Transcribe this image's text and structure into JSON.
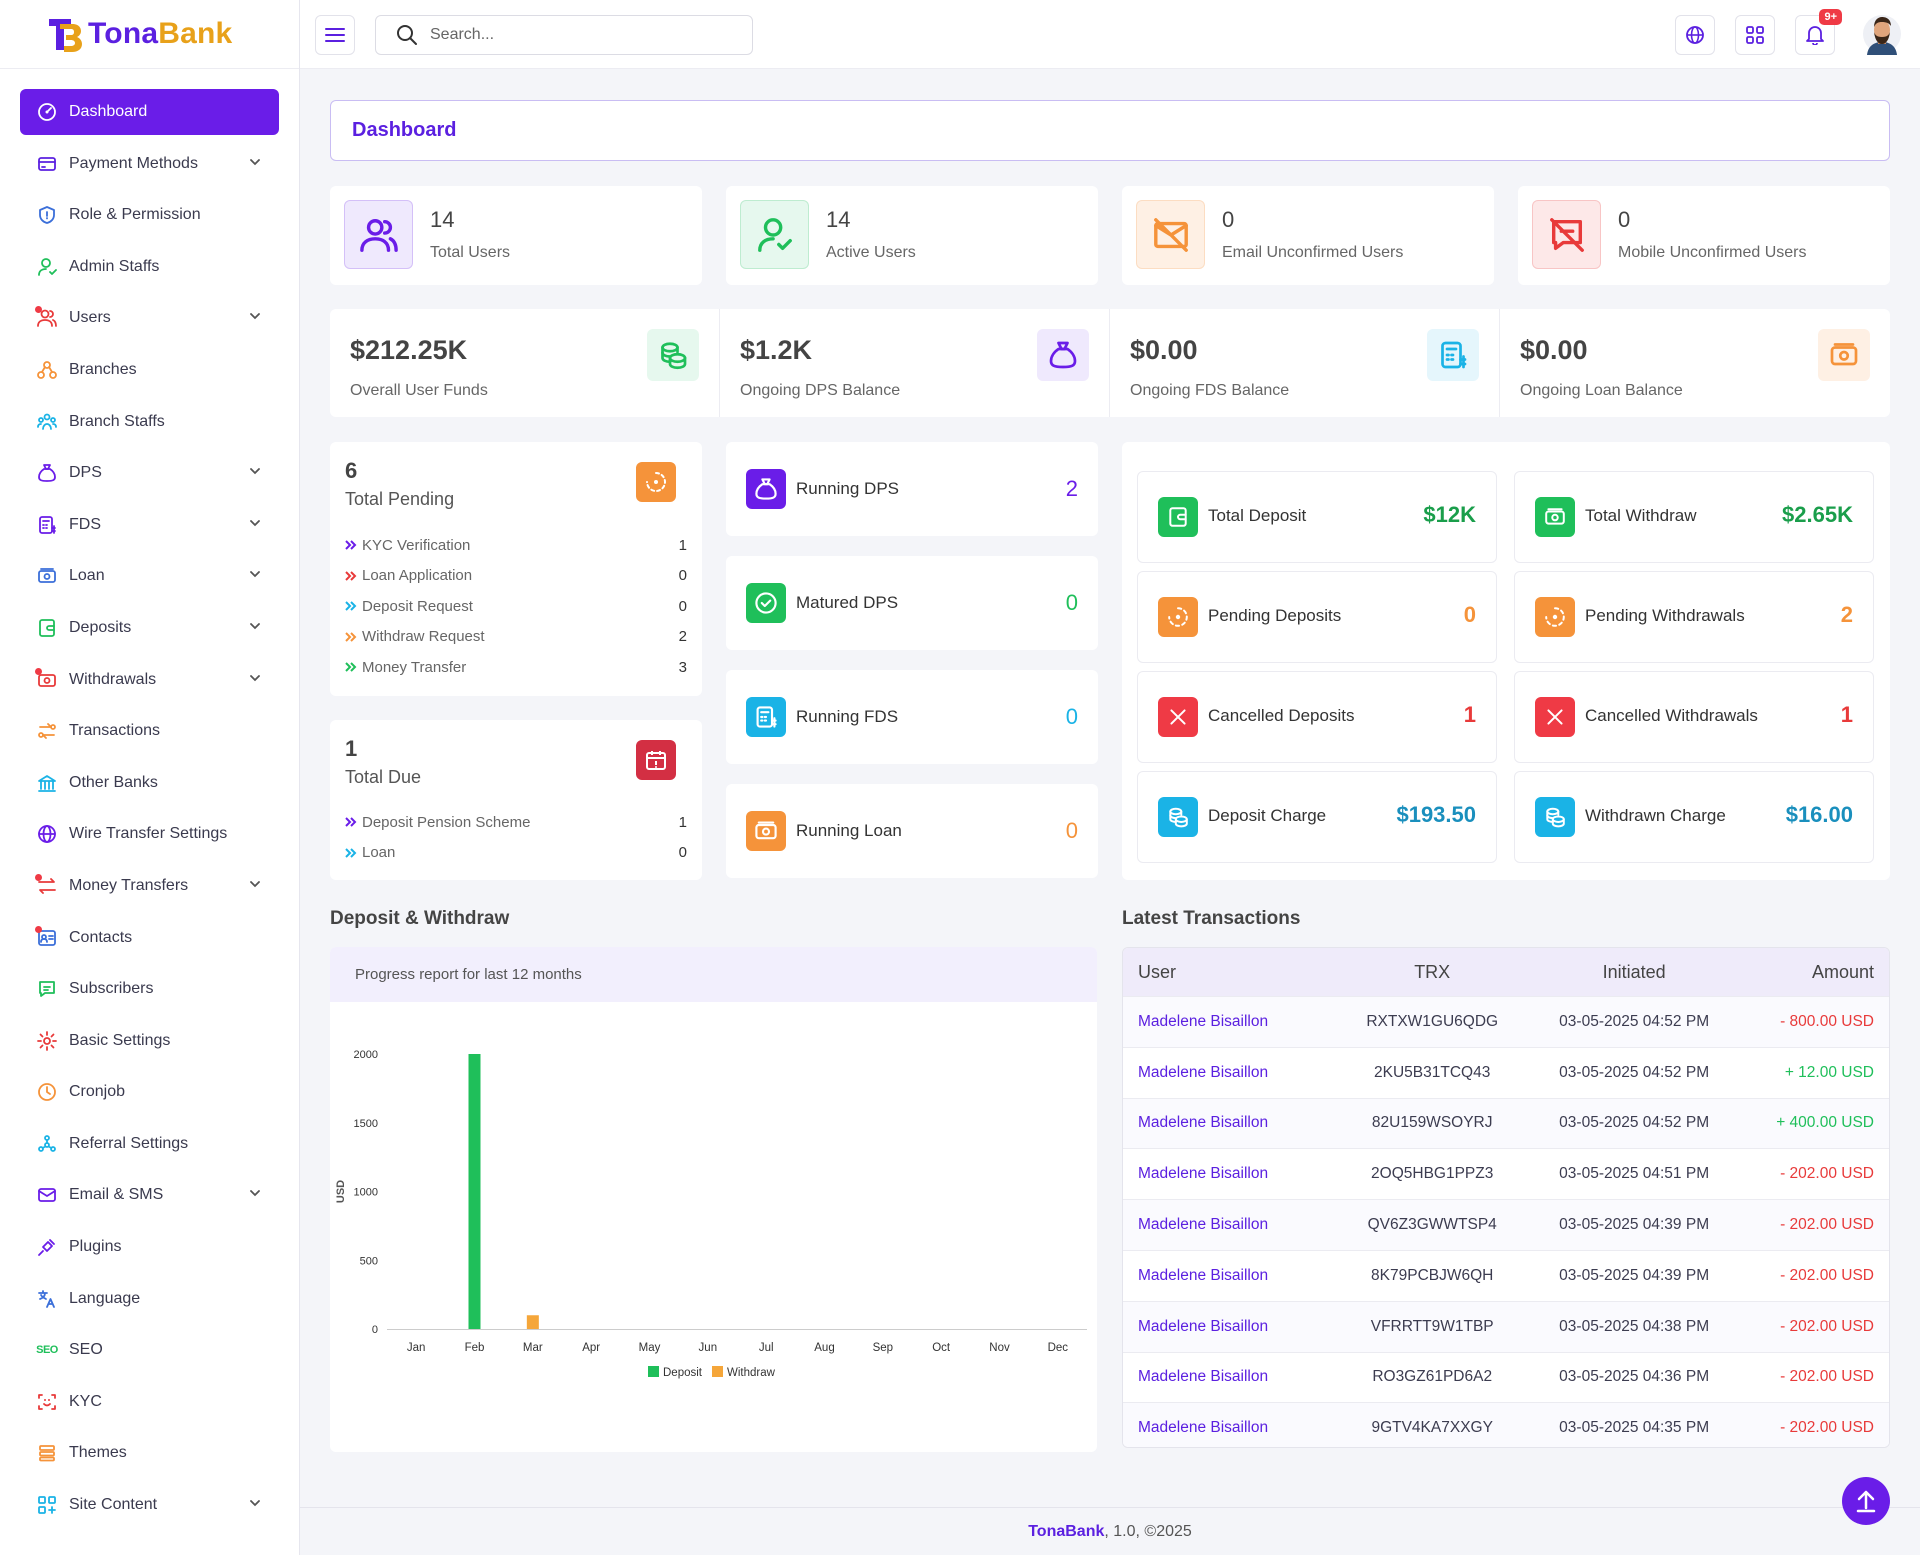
{
  "brand": {
    "part1": "Tona",
    "part2": "Bank"
  },
  "search": {
    "placeholder": "Search..."
  },
  "notifications": {
    "badge": "9+"
  },
  "sidebar": {
    "items": [
      {
        "label": "Dashboard",
        "icon": "dashboard-icon",
        "active": true,
        "chevron": false
      },
      {
        "label": "Payment Methods",
        "icon": "credit-card-icon",
        "chevron": true
      },
      {
        "label": "Role & Permission",
        "icon": "shield-icon",
        "chevron": false
      },
      {
        "label": "Admin Staffs",
        "icon": "user-icon",
        "chevron": false
      },
      {
        "label": "Users",
        "icon": "users-icon",
        "chevron": true,
        "dot": true
      },
      {
        "label": "Branches",
        "icon": "branches-icon",
        "chevron": false
      },
      {
        "label": "Branch Staffs",
        "icon": "staff-group-icon",
        "chevron": false
      },
      {
        "label": "DPS",
        "icon": "money-bag-icon",
        "chevron": true
      },
      {
        "label": "FDS",
        "icon": "calculator-icon",
        "chevron": true
      },
      {
        "label": "Loan",
        "icon": "cash-icon",
        "chevron": true
      },
      {
        "label": "Deposits",
        "icon": "wallet-icon",
        "chevron": true
      },
      {
        "label": "Withdrawals",
        "icon": "withdraw-icon",
        "chevron": true,
        "dot": true
      },
      {
        "label": "Transactions",
        "icon": "exchange-icon",
        "chevron": false
      },
      {
        "label": "Other Banks",
        "icon": "bank-icon",
        "chevron": false
      },
      {
        "label": "Wire Transfer Settings",
        "icon": "globe-icon",
        "chevron": false
      },
      {
        "label": "Money Transfers",
        "icon": "transfer-arrows-icon",
        "chevron": true,
        "dot": true
      },
      {
        "label": "Contacts",
        "icon": "contacts-icon",
        "chevron": false,
        "dot": true
      },
      {
        "label": "Subscribers",
        "icon": "chat-icon",
        "chevron": false
      },
      {
        "label": "Basic Settings",
        "icon": "gear-icon",
        "chevron": false
      },
      {
        "label": "Cronjob",
        "icon": "clock-icon",
        "chevron": false
      },
      {
        "label": "Referral Settings",
        "icon": "network-icon",
        "chevron": false
      },
      {
        "label": "Email & SMS",
        "icon": "mail-icon",
        "chevron": true
      },
      {
        "label": "Plugins",
        "icon": "plug-icon",
        "chevron": false
      },
      {
        "label": "Language",
        "icon": "translate-icon",
        "chevron": false
      },
      {
        "label": "SEO",
        "icon": "seo-icon",
        "chevron": false
      },
      {
        "label": "KYC",
        "icon": "face-scan-icon",
        "chevron": false
      },
      {
        "label": "Themes",
        "icon": "layers-icon",
        "chevron": false
      },
      {
        "label": "Site Content",
        "icon": "grid-plus-icon",
        "chevron": true
      }
    ]
  },
  "page_title": "Dashboard",
  "user_stats": [
    {
      "value": "14",
      "label": "Total Users",
      "icon": "users-icon",
      "color": "#6a1de8",
      "bg": "#efe9fd"
    },
    {
      "value": "14",
      "label": "Active Users",
      "icon": "user-check-icon",
      "color": "#1fbf5a",
      "bg": "#e6f8ee"
    },
    {
      "value": "0",
      "label": "Email Unconfirmed Users",
      "icon": "mail-off-icon",
      "color": "#f5933a",
      "bg": "#fef0e4"
    },
    {
      "value": "0",
      "label": "Mobile Unconfirmed Users",
      "icon": "message-off-icon",
      "color": "#e83a3a",
      "bg": "#fde8e8"
    }
  ],
  "funds": [
    {
      "value": "$212.25K",
      "label": "Overall User Funds",
      "icon": "coins-icon",
      "color": "#1fbf5a",
      "bg": "#e6f8ee"
    },
    {
      "value": "$1.2K",
      "label": "Ongoing DPS Balance",
      "icon": "money-bag-icon",
      "color": "#6a1de8",
      "bg": "#efe9fd"
    },
    {
      "value": "$0.00",
      "label": "Ongoing FDS Balance",
      "icon": "calculator-icon",
      "color": "#1ab3e6",
      "bg": "#e5f6fc"
    },
    {
      "value": "$0.00",
      "label": "Ongoing Loan Balance",
      "icon": "cash-icon",
      "color": "#f5933a",
      "bg": "#fef0e4"
    }
  ],
  "pending": {
    "value": "6",
    "title": "Total Pending",
    "items": [
      {
        "label": "KYC Verification",
        "value": "1",
        "color": "#6a1de8"
      },
      {
        "label": "Loan Application",
        "value": "0",
        "color": "#e83a3a"
      },
      {
        "label": "Deposit Request",
        "value": "0",
        "color": "#1ab3e6"
      },
      {
        "label": "Withdraw Request",
        "value": "2",
        "color": "#f5933a"
      },
      {
        "label": "Money Transfer",
        "value": "3",
        "color": "#1fbf5a"
      }
    ]
  },
  "due": {
    "value": "1",
    "title": "Total Due",
    "items": [
      {
        "label": "Deposit Pension Scheme",
        "value": "1",
        "color": "#6a1de8"
      },
      {
        "label": "Loan",
        "value": "0",
        "color": "#1ab3e6"
      }
    ]
  },
  "running": [
    {
      "label": "Running DPS",
      "value": "2",
      "color": "#6a1de8",
      "icon": "money-bag-icon"
    },
    {
      "label": "Matured DPS",
      "value": "0",
      "color": "#1fbf5a",
      "icon": "check-circle-icon"
    },
    {
      "label": "Running FDS",
      "value": "0",
      "color": "#1ab3e6",
      "icon": "calculator-icon"
    },
    {
      "label": "Running Loan",
      "value": "0",
      "color": "#f5933a",
      "icon": "cash-icon"
    }
  ],
  "tx_summary": [
    {
      "label": "Total Deposit",
      "value": "$12K",
      "color": "#1fbf5a",
      "icon": "wallet-icon",
      "vcolor": "#1a9e4b"
    },
    {
      "label": "Total Withdraw",
      "value": "$2.65K",
      "color": "#1fbf5a",
      "icon": "cash-icon",
      "vcolor": "#1a9e4b"
    },
    {
      "label": "Pending Deposits",
      "value": "0",
      "color": "#f5933a",
      "icon": "loader-icon",
      "vcolor": "#f5933a"
    },
    {
      "label": "Pending Withdrawals",
      "value": "2",
      "color": "#f5933a",
      "icon": "loader-icon",
      "vcolor": "#f5933a"
    },
    {
      "label": "Cancelled Deposits",
      "value": "1",
      "color": "#ef3a45",
      "icon": "close-icon",
      "vcolor": "#e83a3a"
    },
    {
      "label": "Cancelled Withdrawals",
      "value": "1",
      "color": "#ef3a45",
      "icon": "close-icon",
      "vcolor": "#e83a3a"
    },
    {
      "label": "Deposit Charge",
      "value": "$193.50",
      "color": "#1ab3e6",
      "icon": "coins-icon",
      "vcolor": "#1a8fbd"
    },
    {
      "label": "Withdrawn Charge",
      "value": "$16.00",
      "color": "#1ab3e6",
      "icon": "coins-icon",
      "vcolor": "#1a8fbd"
    }
  ],
  "chart_section": {
    "title": "Deposit & Withdraw",
    "subtitle": "Progress report for last 12 months"
  },
  "chart_data": {
    "type": "bar",
    "categories": [
      "Jan",
      "Feb",
      "Mar",
      "Apr",
      "May",
      "Jun",
      "Jul",
      "Aug",
      "Sep",
      "Oct",
      "Nov",
      "Dec"
    ],
    "series": [
      {
        "name": "Deposit",
        "color": "#1fbf5a",
        "values": [
          0,
          2000,
          0,
          0,
          0,
          0,
          0,
          0,
          0,
          0,
          0,
          0
        ]
      },
      {
        "name": "Withdraw",
        "color": "#f5a63a",
        "values": [
          0,
          0,
          100,
          0,
          0,
          0,
          0,
          0,
          0,
          0,
          0,
          0
        ]
      }
    ],
    "ylabel": "USD",
    "ylim": [
      0,
      2000
    ],
    "yticks": [
      0,
      500,
      1000,
      1500,
      2000
    ],
    "legend": "bottom",
    "grid": false
  },
  "transactions": {
    "title": "Latest Transactions",
    "columns": [
      "User",
      "TRX",
      "Initiated",
      "Amount"
    ],
    "rows": [
      {
        "user": "Madelene Bisaillon",
        "trx": "RXTXW1GU6QDG",
        "date": "03-05-2025 04:52 PM",
        "amount": "- 800.00 USD",
        "type": "neg"
      },
      {
        "user": "Madelene Bisaillon",
        "trx": "2KU5B31TCQ43",
        "date": "03-05-2025 04:52 PM",
        "amount": "+ 12.00 USD",
        "type": "pos"
      },
      {
        "user": "Madelene Bisaillon",
        "trx": "82U159WSOYRJ",
        "date": "03-05-2025 04:52 PM",
        "amount": "+ 400.00 USD",
        "type": "pos"
      },
      {
        "user": "Madelene Bisaillon",
        "trx": "2OQ5HBG1PPZ3",
        "date": "03-05-2025 04:51 PM",
        "amount": "- 202.00 USD",
        "type": "neg"
      },
      {
        "user": "Madelene Bisaillon",
        "trx": "QV6Z3GWWTSP4",
        "date": "03-05-2025 04:39 PM",
        "amount": "- 202.00 USD",
        "type": "neg"
      },
      {
        "user": "Madelene Bisaillon",
        "trx": "8K79PCBJW6QH",
        "date": "03-05-2025 04:39 PM",
        "amount": "- 202.00 USD",
        "type": "neg"
      },
      {
        "user": "Madelene Bisaillon",
        "trx": "VFRRTT9W1TBP",
        "date": "03-05-2025 04:38 PM",
        "amount": "- 202.00 USD",
        "type": "neg"
      },
      {
        "user": "Madelene Bisaillon",
        "trx": "RO3GZ61PD6A2",
        "date": "03-05-2025 04:36 PM",
        "amount": "- 202.00 USD",
        "type": "neg"
      },
      {
        "user": "Madelene Bisaillon",
        "trx": "9GTV4KA7XXGY",
        "date": "03-05-2025 04:35 PM",
        "amount": "- 202.00 USD",
        "type": "neg"
      }
    ]
  },
  "footer": {
    "brand": "TonaBank",
    "text": ", 1.0, ©2025"
  }
}
